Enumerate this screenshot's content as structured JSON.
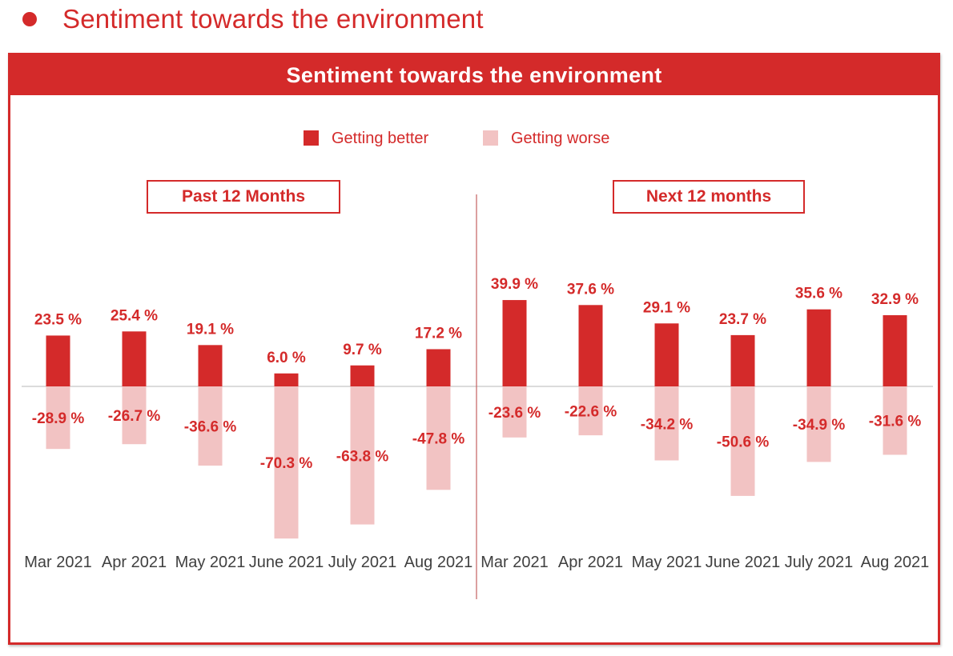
{
  "page_title": "Sentiment towards the environment",
  "colors": {
    "better": "#d42a2a",
    "worse": "#f2c3c3",
    "accent": "#d42a2a",
    "axis": "#cfcfcf",
    "text": "#404040"
  },
  "chart_data": {
    "type": "bar",
    "title": "Sentiment towards the environment",
    "legend": [
      {
        "name": "Getting better",
        "color": "#d42a2a"
      },
      {
        "name": "Getting worse",
        "color": "#f2c3c3"
      }
    ],
    "legend_position": "top-center",
    "value_suffix": " %",
    "groups": [
      {
        "label": "Past 12 Months",
        "categories": [
          "Mar 2021",
          "Apr 2021",
          "May 2021",
          "June 2021",
          "July 2021",
          "Aug 2021"
        ],
        "series": [
          {
            "name": "Getting better",
            "values": [
              23.5,
              25.4,
              19.1,
              6.0,
              9.7,
              17.2
            ]
          },
          {
            "name": "Getting worse",
            "values": [
              -28.9,
              -26.7,
              -36.6,
              -70.3,
              -63.8,
              -47.8
            ]
          }
        ]
      },
      {
        "label": "Next 12 months",
        "categories": [
          "Mar 2021",
          "Apr 2021",
          "May 2021",
          "June 2021",
          "July 2021",
          "Aug 2021"
        ],
        "series": [
          {
            "name": "Getting better",
            "values": [
              39.9,
              37.6,
              29.1,
              23.7,
              35.6,
              32.9
            ]
          },
          {
            "name": "Getting worse",
            "values": [
              -23.6,
              -22.6,
              -34.2,
              -50.6,
              -34.9,
              -31.6
            ]
          }
        ]
      }
    ],
    "ylim": [
      -70.3,
      39.9
    ],
    "xlabel": "",
    "ylabel": ""
  }
}
